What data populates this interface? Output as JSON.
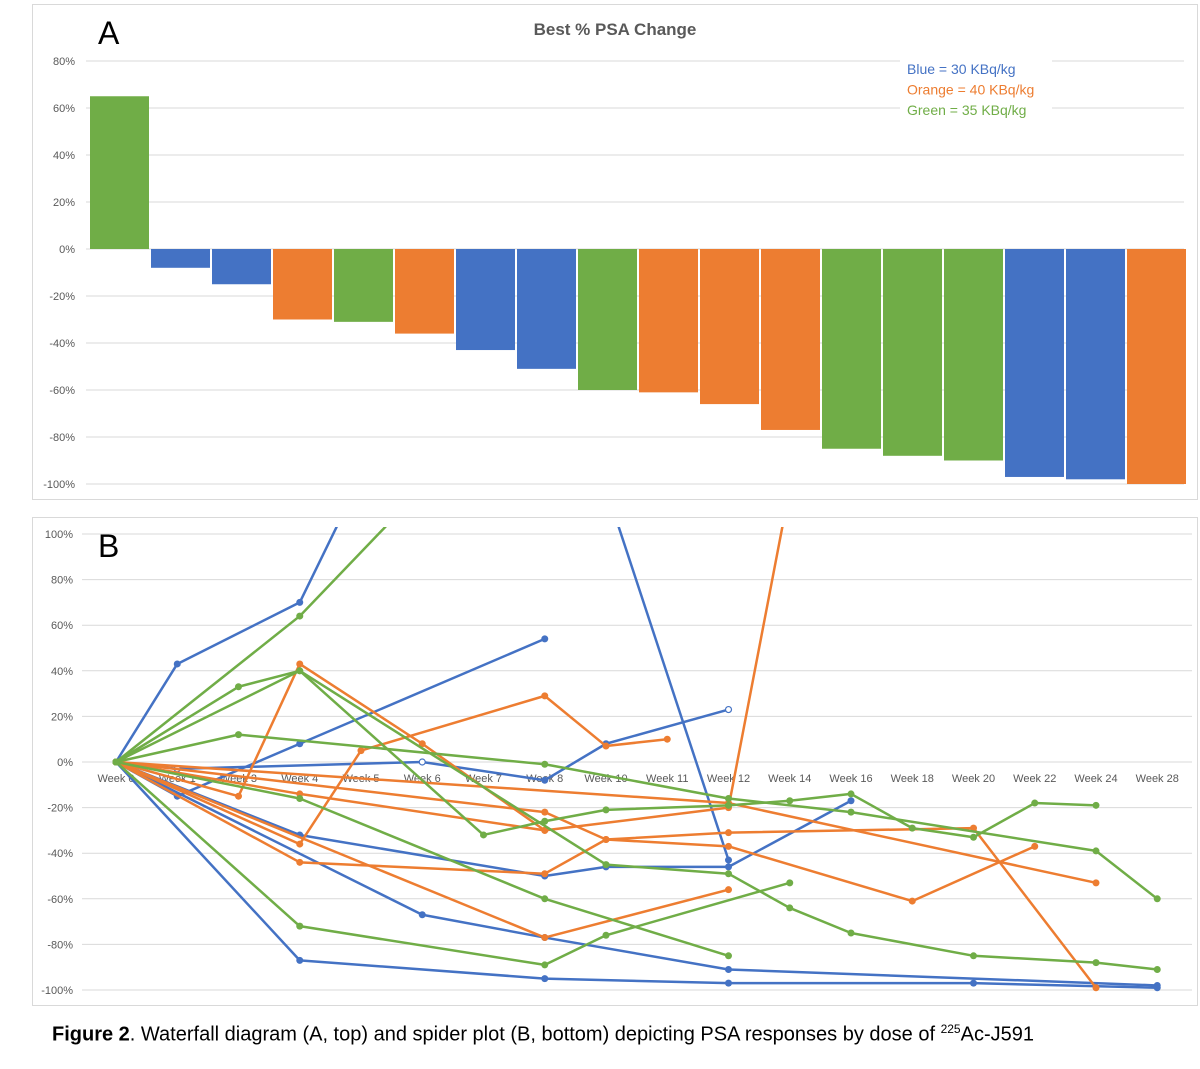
{
  "colors": {
    "blue": "#4472c4",
    "orange": "#ed7d31",
    "green": "#70ad47"
  },
  "chart_data": [
    {
      "type": "bar",
      "panel_label": "A",
      "title": "Best % PSA Change",
      "ylim": [
        -100,
        80
      ],
      "yticks": [
        80,
        60,
        40,
        20,
        0,
        -20,
        -40,
        -60,
        -80,
        -100
      ],
      "ytick_labels": [
        "80%",
        "60%",
        "40%",
        "20%",
        "0%",
        "-20%",
        "-40%",
        "-60%",
        "-80%",
        "-100%"
      ],
      "grid": true,
      "legend": {
        "position": "top-right",
        "entries": [
          {
            "label": "Blue = 30 KBq/kg",
            "color": "#4472c4"
          },
          {
            "label": "Orange = 40 KBq/kg",
            "color": "#ed7d31"
          },
          {
            "label": "Green = 35 KBq/kg",
            "color": "#70ad47"
          }
        ]
      },
      "bars": [
        {
          "value": 65,
          "color": "green"
        },
        {
          "value": -8,
          "color": "blue"
        },
        {
          "value": -15,
          "color": "blue"
        },
        {
          "value": -30,
          "color": "orange"
        },
        {
          "value": -31,
          "color": "green"
        },
        {
          "value": -36,
          "color": "orange"
        },
        {
          "value": -43,
          "color": "blue"
        },
        {
          "value": -51,
          "color": "blue"
        },
        {
          "value": -60,
          "color": "green"
        },
        {
          "value": -61,
          "color": "orange"
        },
        {
          "value": -66,
          "color": "orange"
        },
        {
          "value": -77,
          "color": "orange"
        },
        {
          "value": -85,
          "color": "green"
        },
        {
          "value": -88,
          "color": "green"
        },
        {
          "value": -90,
          "color": "green"
        },
        {
          "value": -97,
          "color": "blue"
        },
        {
          "value": -98,
          "color": "blue"
        },
        {
          "value": -100,
          "color": "orange"
        }
      ]
    },
    {
      "type": "line",
      "panel_label": "B",
      "ylim": [
        -100,
        100
      ],
      "yticks": [
        100,
        80,
        60,
        40,
        20,
        0,
        -20,
        -40,
        -60,
        -80,
        -100
      ],
      "ytick_labels": [
        "100%",
        "80%",
        "60%",
        "40%",
        "20%",
        "0%",
        "-20%",
        "-40%",
        "-60%",
        "-80%",
        "-100%"
      ],
      "categories": [
        "Week 0",
        "Week 1",
        "Week 3",
        "Week 4",
        "Week 5",
        "Week 6",
        "Week 7",
        "Week 8",
        "Week 10",
        "Week 11",
        "Week 12",
        "Week 14",
        "Week 16",
        "Week 18",
        "Week 20",
        "Week 22",
        "Week 24",
        "Week 28"
      ],
      "series": [
        {
          "color": "blue",
          "points": [
            [
              0,
              0
            ],
            [
              1,
              43
            ],
            [
              3,
              70
            ],
            [
              4,
              125
            ]
          ]
        },
        {
          "color": "blue",
          "points": [
            [
              0,
              0
            ],
            [
              1,
              -15
            ],
            [
              3,
              8
            ],
            [
              7,
              54
            ]
          ]
        },
        {
          "color": "blue",
          "points": [
            [
              0,
              0
            ],
            [
              1,
              -3
            ],
            [
              5,
              0
            ],
            [
              7,
              -8
            ],
            [
              8,
              8
            ],
            [
              10,
              23
            ]
          ],
          "hollow": [
            1,
            2,
            5
          ]
        },
        {
          "color": "blue",
          "points": [
            [
              0,
              0
            ],
            [
              3,
              -32
            ],
            [
              7,
              -50
            ],
            [
              8,
              -46
            ],
            [
              10,
              -46
            ],
            [
              12,
              -17
            ]
          ]
        },
        {
          "color": "blue",
          "points": [
            [
              0,
              0
            ],
            [
              5,
              -67
            ],
            [
              7,
              -77
            ],
            [
              10,
              -91
            ],
            [
              17,
              -98
            ]
          ]
        },
        {
          "color": "blue",
          "points": [
            [
              0,
              0
            ],
            [
              3,
              -87
            ],
            [
              7,
              -95
            ],
            [
              10,
              -97
            ],
            [
              14,
              -97
            ],
            [
              17,
              -99
            ]
          ]
        },
        {
          "color": "blue",
          "points": [
            [
              8,
              120
            ],
            [
              10,
              -43
            ]
          ]
        },
        {
          "color": "orange",
          "points": [
            [
              0,
              0
            ],
            [
              2,
              -15
            ],
            [
              3,
              43
            ],
            [
              5,
              8
            ],
            [
              7,
              -30
            ]
          ]
        },
        {
          "color": "orange",
          "points": [
            [
              0,
              0
            ],
            [
              3,
              -36
            ],
            [
              4,
              5
            ],
            [
              7,
              29
            ],
            [
              8,
              7
            ],
            [
              9,
              10
            ]
          ]
        },
        {
          "color": "orange",
          "points": [
            [
              0,
              0
            ],
            [
              3,
              -44
            ],
            [
              7,
              -49
            ],
            [
              8,
              -34
            ],
            [
              10,
              -31
            ],
            [
              14,
              -29
            ],
            [
              16,
              -99
            ]
          ]
        },
        {
          "color": "orange",
          "points": [
            [
              0,
              0
            ],
            [
              7,
              -77
            ],
            [
              10,
              -56
            ]
          ]
        },
        {
          "color": "orange",
          "points": [
            [
              0,
              0
            ],
            [
              7,
              -22
            ],
            [
              8,
              -34
            ],
            [
              10,
              -37
            ],
            [
              13,
              -61
            ],
            [
              15,
              -37
            ]
          ]
        },
        {
          "color": "orange",
          "points": [
            [
              0,
              0
            ],
            [
              3,
              -14
            ],
            [
              7,
              -30
            ],
            [
              10,
              -20
            ],
            [
              11,
              120
            ]
          ]
        },
        {
          "color": "orange",
          "points": [
            [
              0,
              0
            ],
            [
              10,
              -18
            ],
            [
              16,
              -53
            ]
          ]
        },
        {
          "color": "green",
          "points": [
            [
              0,
              0
            ],
            [
              3,
              64
            ],
            [
              5,
              120
            ]
          ]
        },
        {
          "color": "green",
          "points": [
            [
              0,
              0
            ],
            [
              2,
              33
            ],
            [
              3,
              40
            ],
            [
              6,
              -32
            ],
            [
              7,
              -26
            ],
            [
              8,
              -21
            ],
            [
              10,
              -19
            ],
            [
              11,
              -17
            ],
            [
              12,
              -14
            ],
            [
              13,
              -29
            ],
            [
              14,
              -33
            ],
            [
              15,
              -18
            ],
            [
              16,
              -19
            ]
          ]
        },
        {
          "color": "green",
          "points": [
            [
              0,
              0
            ],
            [
              2,
              12
            ],
            [
              7,
              -1
            ],
            [
              10,
              -16
            ],
            [
              12,
              -22
            ],
            [
              16,
              -39
            ],
            [
              17,
              -60
            ]
          ]
        },
        {
          "color": "green",
          "points": [
            [
              0,
              0
            ],
            [
              3,
              -16
            ],
            [
              7,
              -60
            ],
            [
              10,
              -85
            ]
          ]
        },
        {
          "color": "green",
          "points": [
            [
              0,
              0
            ],
            [
              3,
              -72
            ],
            [
              7,
              -89
            ],
            [
              8,
              -76
            ],
            [
              11,
              -53
            ]
          ]
        },
        {
          "color": "green",
          "points": [
            [
              0,
              0
            ],
            [
              3,
              40
            ],
            [
              8,
              -45
            ],
            [
              10,
              -49
            ],
            [
              11,
              -64
            ],
            [
              12,
              -75
            ],
            [
              14,
              -85
            ],
            [
              16,
              -88
            ],
            [
              17,
              -91
            ]
          ]
        }
      ]
    }
  ],
  "caption": {
    "label": "Figure 2",
    "text_before": ". Waterfall diagram (A, top) and spider plot (B, bottom) depicting PSA responses by dose of ",
    "superscript": "225",
    "text_after": "Ac-J591"
  }
}
